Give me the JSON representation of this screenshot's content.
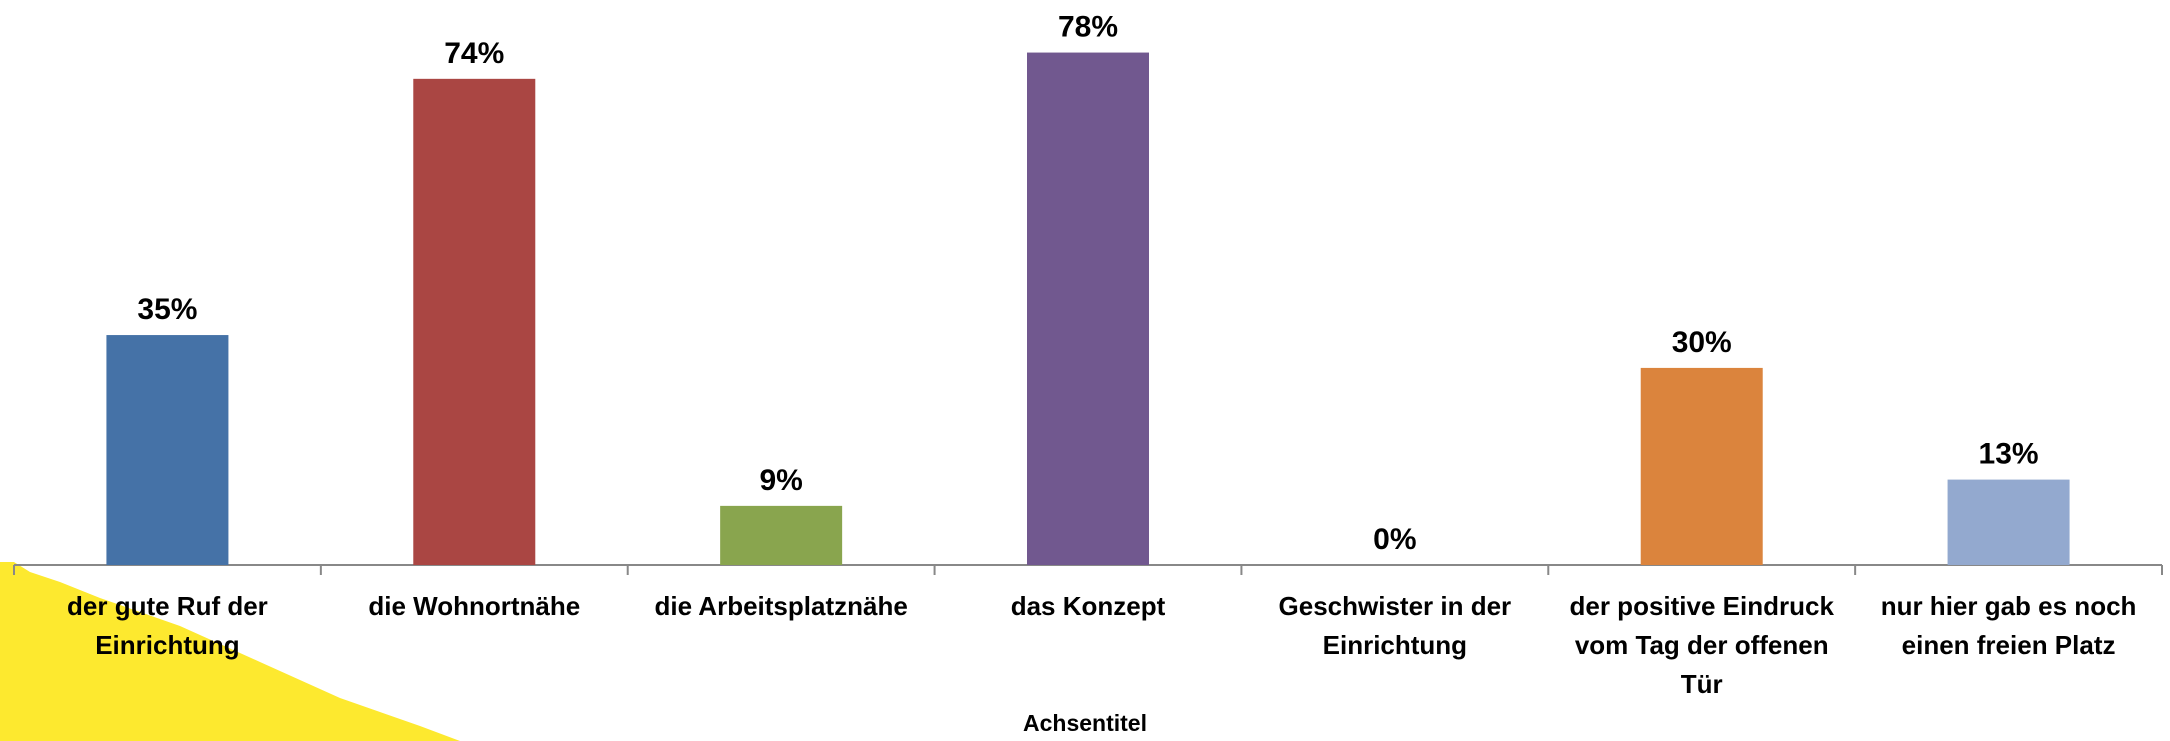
{
  "chart_data": {
    "type": "bar",
    "categories": [
      "der gute Ruf der Einrichtung",
      "die Wohnortnähe",
      "die Arbeitsplatznähe",
      "das Konzept",
      "Geschwister in der Einrichtung",
      "der positive Eindruck vom Tag der offenen Tür",
      "nur hier gab es noch einen freien Platz"
    ],
    "values": [
      35,
      74,
      9,
      78,
      0,
      30,
      13
    ],
    "value_labels": [
      "35%",
      "74%",
      "9%",
      "78%",
      "0%",
      "30%",
      "13%"
    ],
    "colors": [
      "#4572a7",
      "#aa4643",
      "#89a54e",
      "#71588f",
      "#4198af",
      "#db843d",
      "#93a9cf"
    ],
    "x_label": "Achsentitel",
    "ylim": [
      0,
      86
    ]
  }
}
